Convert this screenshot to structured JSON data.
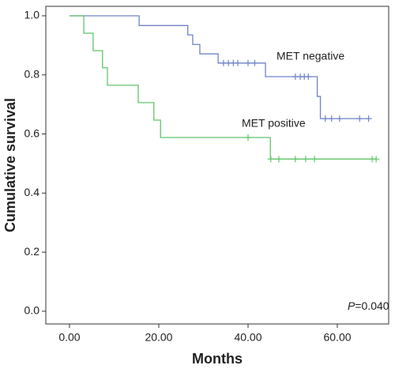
{
  "chart_data": {
    "type": "step",
    "ylabel": "Cumulative survival",
    "xlabel": "Months",
    "xlim": [
      -5.3,
      71.5
    ],
    "ylim": [
      -0.043,
      1.032
    ],
    "xticks": [
      {
        "value": 0,
        "label": "0.00"
      },
      {
        "value": 20,
        "label": "20.00"
      },
      {
        "value": 40,
        "label": "40.00"
      },
      {
        "value": 60,
        "label": "60.00"
      }
    ],
    "yticks": [
      {
        "value": 0,
        "label": "0.0"
      },
      0.2,
      0.4,
      0.6,
      0.8,
      {
        "value": 1,
        "label": "1.0"
      }
    ],
    "series": [
      {
        "name": "MET negative",
        "color": "#6f83c6",
        "x": [
          0,
          15.6,
          26.5,
          27.6,
          29.2,
          33.3,
          43.9,
          55.5,
          56.2
        ],
        "values": [
          1,
          0.967,
          0.935,
          0.903,
          0.871,
          0.84,
          0.794,
          0.727,
          0.652
        ],
        "censored_x": [
          34.5,
          35.6,
          36.7,
          37.7,
          40,
          41.5,
          50.6,
          51.7,
          52.6,
          53.5,
          57.3,
          58.7,
          60.5,
          65,
          67
        ],
        "censored_values": [
          0.84,
          0.84,
          0.84,
          0.84,
          0.84,
          0.84,
          0.794,
          0.794,
          0.794,
          0.794,
          0.652,
          0.652,
          0.652,
          0.652,
          0.652
        ]
      },
      {
        "name": "MET positive",
        "color": "#62c46c",
        "x": [
          0,
          3.2,
          5.3,
          7.4,
          8.5,
          15.4,
          18.9,
          20.4,
          45
        ],
        "values": [
          1,
          0.941,
          0.882,
          0.824,
          0.765,
          0.706,
          0.647,
          0.588,
          0.515
        ],
        "censored_x": [
          40,
          45.1,
          46.9,
          50.6,
          52.9,
          54.9,
          67.8,
          68.7
        ],
        "censored_values": [
          0.588,
          0.515,
          0.515,
          0.515,
          0.515,
          0.515,
          0.515,
          0.515
        ]
      }
    ],
    "annotation_italic": "P",
    "annotation_rest": "=0.040"
  }
}
